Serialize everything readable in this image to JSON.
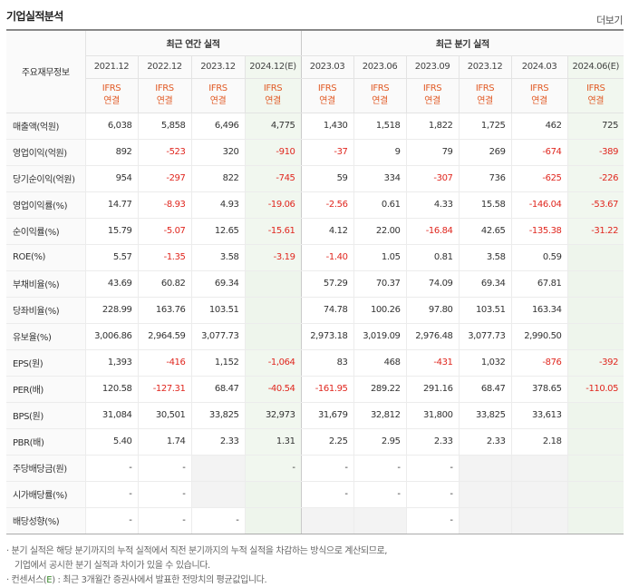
{
  "header": {
    "title": "기업실적분석",
    "more": "더보기"
  },
  "table": {
    "corner_label": "주요재무정보",
    "annual_group": "최근 연간 실적",
    "quarter_group": "최근 분기 실적",
    "ifrs_top": "IFRS",
    "ifrs_bottom": "연결",
    "periods": [
      "2021.12",
      "2022.12",
      "2023.12",
      "2024.12(E)",
      "2023.03",
      "2023.06",
      "2023.09",
      "2023.12",
      "2024.03",
      "2024.06(E)"
    ],
    "rows": [
      {
        "label": "매출액(억원)",
        "values": [
          "6,038",
          "5,858",
          "6,496",
          "4,775",
          "1,430",
          "1,518",
          "1,822",
          "1,725",
          "462",
          "725"
        ]
      },
      {
        "label": "영업이익(억원)",
        "values": [
          "892",
          "-523",
          "320",
          "-910",
          "-37",
          "9",
          "79",
          "269",
          "-674",
          "-389"
        ]
      },
      {
        "label": "당기순이익(억원)",
        "values": [
          "954",
          "-297",
          "822",
          "-745",
          "59",
          "334",
          "-307",
          "736",
          "-625",
          "-226"
        ]
      },
      {
        "label": "영업이익률(%)",
        "values": [
          "14.77",
          "-8.93",
          "4.93",
          "-19.06",
          "-2.56",
          "0.61",
          "4.33",
          "15.58",
          "-146.04",
          "-53.67"
        ]
      },
      {
        "label": "순이익률(%)",
        "values": [
          "15.79",
          "-5.07",
          "12.65",
          "-15.61",
          "4.12",
          "22.00",
          "-16.84",
          "42.65",
          "-135.38",
          "-31.22"
        ]
      },
      {
        "label": "ROE(%)",
        "values": [
          "5.57",
          "-1.35",
          "3.58",
          "-3.19",
          "-1.40",
          "1.05",
          "0.81",
          "3.58",
          "0.59",
          ""
        ]
      },
      {
        "label": "부채비율(%)",
        "values": [
          "43.69",
          "60.82",
          "69.34",
          "",
          "57.29",
          "70.37",
          "74.09",
          "69.34",
          "67.81",
          ""
        ]
      },
      {
        "label": "당좌비율(%)",
        "values": [
          "228.99",
          "163.76",
          "103.51",
          "",
          "74.78",
          "100.26",
          "97.80",
          "103.51",
          "163.34",
          ""
        ]
      },
      {
        "label": "유보율(%)",
        "values": [
          "3,006.86",
          "2,964.59",
          "3,077.73",
          "",
          "2,973.18",
          "3,019.09",
          "2,976.48",
          "3,077.73",
          "2,990.50",
          ""
        ]
      },
      {
        "label": "EPS(원)",
        "values": [
          "1,393",
          "-416",
          "1,152",
          "-1,064",
          "83",
          "468",
          "-431",
          "1,032",
          "-876",
          "-392"
        ]
      },
      {
        "label": "PER(배)",
        "values": [
          "120.58",
          "-127.31",
          "68.47",
          "-40.54",
          "-161.95",
          "289.22",
          "291.16",
          "68.47",
          "378.65",
          "-110.05"
        ]
      },
      {
        "label": "BPS(원)",
        "values": [
          "31,084",
          "30,501",
          "33,825",
          "32,973",
          "31,679",
          "32,812",
          "31,800",
          "33,825",
          "33,613",
          ""
        ]
      },
      {
        "label": "PBR(배)",
        "values": [
          "5.40",
          "1.74",
          "2.33",
          "1.31",
          "2.25",
          "2.95",
          "2.33",
          "2.33",
          "2.18",
          ""
        ]
      },
      {
        "label": "주당배당금(원)",
        "values": [
          "-",
          "-",
          "",
          "-",
          "-",
          "-",
          "-",
          "",
          "",
          ""
        ]
      },
      {
        "label": "시가배당률(%)",
        "values": [
          "-",
          "-",
          "",
          "",
          "-",
          "-",
          "-",
          "",
          "",
          ""
        ]
      },
      {
        "label": "배당성향(%)",
        "values": [
          "-",
          "-",
          "-",
          "",
          "",
          "",
          "-",
          "",
          "",
          ""
        ]
      }
    ]
  },
  "notes": {
    "line1": "· 분기 실적은 해당 분기까지의 누적 실적에서 직전 분기까지의 누적 실적을 차감하는 방식으로 계산되므로,",
    "line2": "기업에서 공시한 분기 실적과 차이가 있을 수 있습니다.",
    "line3_prefix": "· 컨센서스(",
    "line3_mark": "E",
    "line3_suffix": ") : 최근 3개월간 증권사에서 발표한 전망치의 평균값입니다."
  },
  "colors": {
    "negative": "#e0271f",
    "ifrs": "#e15b26",
    "estimate_bg": "#f1f7ef"
  }
}
